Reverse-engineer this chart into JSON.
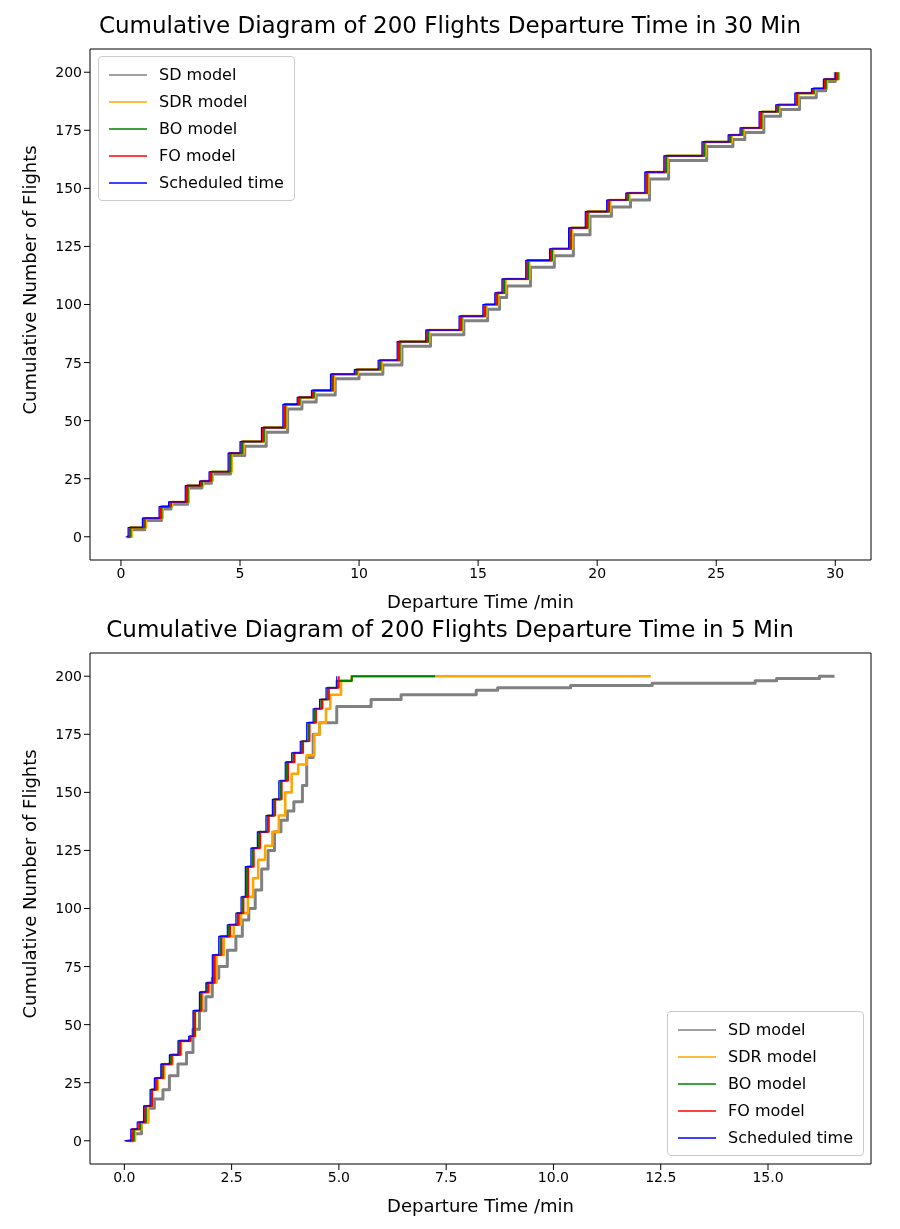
{
  "chart_data": [
    {
      "type": "step",
      "title": "Cumulative Diagram of 200 Flights Departure Time in 30 Min",
      "xlabel": "Departure Time /min",
      "ylabel": "Cumulative Number of Flights",
      "xlim": [
        -1.3,
        31.5
      ],
      "ylim": [
        -10,
        210
      ],
      "xticks": [
        0,
        5,
        10,
        15,
        20,
        25,
        30
      ],
      "yticks": [
        0,
        25,
        50,
        75,
        100,
        125,
        150,
        175,
        200
      ],
      "grid": false,
      "legend": "top left",
      "marker": "none",
      "line_style": "solid",
      "series": [
        {
          "name": "SD model",
          "color": "#808080",
          "x": [
            0.25,
            0.4,
            1.0,
            1.7,
            2.1,
            2.8,
            3.4,
            3.8,
            4.6,
            5.2,
            6.1,
            7.0,
            7.6,
            8.2,
            9.0,
            10.0,
            11.0,
            11.8,
            13.0,
            14.4,
            15.4,
            15.9,
            16.2,
            17.2,
            18.2,
            19.0,
            19.7,
            20.6,
            21.4,
            22.2,
            23.0,
            24.6,
            25.7,
            26.2,
            27.0,
            27.7,
            28.5,
            29.2,
            29.6,
            30.0
          ],
          "values": [
            0,
            3,
            7,
            12,
            14,
            21,
            23,
            27,
            35,
            39,
            45,
            55,
            58,
            61,
            68,
            70,
            74,
            82,
            87,
            93,
            98,
            103,
            108,
            116,
            121,
            130,
            138,
            142,
            145,
            154,
            162,
            168,
            171,
            174,
            181,
            184,
            189,
            192,
            196,
            200
          ]
        },
        {
          "name": "SDR model",
          "color": "#ffa500",
          "x": [
            0.35,
            0.45,
            1.05,
            1.75,
            2.15,
            2.85,
            3.45,
            3.85,
            4.65,
            5.15,
            6.05,
            6.95,
            7.55,
            8.15,
            8.95,
            9.95,
            10.95,
            11.75,
            12.95,
            14.35,
            15.35,
            15.85,
            16.15,
            17.15,
            18.15,
            18.95,
            19.65,
            20.55,
            21.35,
            22.15,
            22.95,
            24.55,
            25.65,
            26.15,
            26.95,
            27.65,
            28.45,
            29.15,
            29.65,
            30.15
          ],
          "values": [
            0,
            4,
            8,
            13,
            15,
            22,
            24,
            28,
            36,
            41,
            47,
            57,
            60,
            63,
            70,
            72,
            76,
            84,
            89,
            95,
            100,
            105,
            111,
            119,
            124,
            133,
            140,
            145,
            148,
            157,
            164,
            170,
            173,
            176,
            183,
            186,
            191,
            193,
            197,
            200
          ]
        },
        {
          "name": "BO model",
          "color": "#008000",
          "x": [
            0.3,
            0.4,
            1.0,
            1.7,
            2.1,
            2.8,
            3.4,
            3.8,
            4.6,
            5.1,
            6.0,
            6.9,
            7.5,
            8.1,
            8.9,
            9.9,
            10.9,
            11.7,
            12.9,
            14.3,
            15.3,
            15.8,
            16.1,
            17.1,
            18.1,
            18.9,
            19.6,
            20.5,
            21.3,
            22.1,
            22.9,
            24.5,
            25.6,
            26.1,
            26.9,
            27.6,
            28.4,
            29.1,
            29.6,
            30.1
          ],
          "values": [
            0,
            4,
            8,
            13,
            15,
            22,
            24,
            28,
            36,
            41,
            47,
            57,
            60,
            63,
            70,
            72,
            76,
            84,
            89,
            95,
            100,
            105,
            111,
            119,
            124,
            133,
            140,
            145,
            148,
            157,
            164,
            170,
            173,
            176,
            183,
            186,
            191,
            193,
            197,
            200
          ]
        },
        {
          "name": "FO model",
          "color": "#ff0000",
          "x": [
            0.25,
            0.35,
            0.95,
            1.65,
            2.05,
            2.75,
            3.35,
            3.75,
            4.55,
            5.05,
            5.95,
            6.85,
            7.45,
            8.05,
            8.85,
            9.85,
            10.85,
            11.65,
            12.85,
            14.25,
            15.25,
            15.75,
            16.05,
            17.05,
            18.05,
            18.85,
            19.55,
            20.45,
            21.25,
            22.05,
            22.85,
            24.45,
            25.55,
            26.05,
            26.85,
            27.55,
            28.35,
            29.05,
            29.55,
            30.05
          ],
          "values": [
            0,
            4,
            8,
            13,
            15,
            22,
            24,
            28,
            36,
            41,
            47,
            57,
            60,
            63,
            70,
            72,
            76,
            84,
            89,
            95,
            100,
            105,
            111,
            119,
            124,
            133,
            140,
            145,
            148,
            157,
            164,
            170,
            173,
            176,
            183,
            186,
            191,
            193,
            197,
            200
          ]
        },
        {
          "name": "Scheduled time",
          "color": "#0000ff",
          "x": [
            0.2,
            0.3,
            0.9,
            1.6,
            2.0,
            2.7,
            3.3,
            3.7,
            4.5,
            5.0,
            5.9,
            6.8,
            7.4,
            8.0,
            8.8,
            9.8,
            10.8,
            11.6,
            12.8,
            14.2,
            15.2,
            15.7,
            16.0,
            17.0,
            18.0,
            18.8,
            19.5,
            20.4,
            21.2,
            22.0,
            22.8,
            24.4,
            25.5,
            26.0,
            26.8,
            27.5,
            28.3,
            29.0,
            29.5,
            30.0
          ],
          "values": [
            0,
            4,
            8,
            13,
            15,
            22,
            24,
            28,
            36,
            41,
            47,
            57,
            60,
            63,
            70,
            72,
            76,
            84,
            89,
            95,
            100,
            105,
            111,
            119,
            124,
            133,
            140,
            145,
            148,
            157,
            164,
            170,
            173,
            176,
            183,
            186,
            191,
            193,
            197,
            200
          ]
        }
      ]
    },
    {
      "type": "step",
      "title": "Cumulative Diagram of 200 Flights Departure Time in 5 Min",
      "xlabel": "Departure Time /min",
      "ylabel": "Cumulative Number of Flights",
      "xlim": [
        -0.8,
        17.4
      ],
      "ylim": [
        -10,
        210
      ],
      "xticks": [
        {
          "value": 0,
          "label": "0.0"
        },
        {
          "value": 2.5,
          "label": "2.5"
        },
        {
          "value": 5,
          "label": "5.0"
        },
        {
          "value": 7.5,
          "label": "7.5"
        },
        {
          "value": 10,
          "label": "10.0"
        },
        {
          "value": 12.5,
          "label": "12.5"
        },
        {
          "value": 15,
          "label": "15.0"
        }
      ],
      "yticks": [
        0,
        25,
        50,
        75,
        100,
        125,
        150,
        175,
        200
      ],
      "grid": false,
      "legend": "bottom right",
      "marker": "none",
      "line_style": "solid",
      "series": [
        {
          "name": "SD model",
          "color": "#808080",
          "x": [
            0.1,
            0.2,
            0.4,
            0.55,
            0.7,
            0.9,
            1.05,
            1.25,
            1.45,
            1.6,
            1.75,
            1.9,
            2.05,
            2.2,
            2.4,
            2.6,
            2.75,
            2.9,
            3.05,
            3.2,
            3.35,
            3.5,
            3.65,
            3.8,
            3.95,
            4.15,
            4.25,
            4.4,
            4.55,
            4.95,
            5.75,
            6.45,
            8.2,
            8.7,
            10.4,
            12.3,
            14.7,
            15.2,
            16.2,
            16.55
          ],
          "values": [
            0,
            3,
            8,
            14,
            18,
            22,
            28,
            33,
            38,
            48,
            56,
            62,
            70,
            75,
            82,
            88,
            95,
            100,
            108,
            117,
            125,
            133,
            138,
            142,
            146,
            153,
            165,
            175,
            180,
            187,
            190,
            192,
            194,
            195,
            196,
            197,
            198,
            199,
            200,
            200
          ]
        },
        {
          "name": "SDR model",
          "color": "#ffa500",
          "x": [
            0.08,
            0.25,
            0.4,
            0.55,
            0.65,
            0.78,
            0.93,
            1.12,
            1.32,
            1.55,
            1.65,
            1.82,
            1.98,
            2.15,
            2.32,
            2.55,
            2.72,
            2.88,
            3.0,
            3.12,
            3.28,
            3.45,
            3.6,
            3.75,
            3.9,
            4.05,
            4.25,
            4.43,
            4.55,
            4.7,
            4.8,
            5.05,
            5.3,
            12.27
          ],
          "values": [
            0,
            5,
            8,
            15,
            22,
            27,
            33,
            37,
            43,
            45,
            56,
            64,
            68,
            80,
            88,
            93,
            98,
            105,
            113,
            121,
            127,
            133,
            140,
            150,
            158,
            162,
            166,
            175,
            180,
            186,
            192,
            198,
            200,
            200
          ]
        },
        {
          "name": "BO model",
          "color": "#008000",
          "x": [
            0.05,
            0.22,
            0.37,
            0.5,
            0.63,
            0.73,
            0.88,
            1.08,
            1.28,
            1.53,
            1.63,
            1.78,
            1.93,
            2.08,
            2.24,
            2.44,
            2.64,
            2.76,
            2.86,
            2.99,
            3.14,
            3.34,
            3.49,
            3.64,
            3.79,
            3.94,
            4.14,
            4.29,
            4.44,
            4.59,
            4.74,
            4.95,
            5.3,
            7.24
          ],
          "values": [
            0,
            5,
            8,
            15,
            22,
            27,
            33,
            37,
            43,
            45,
            56,
            64,
            68,
            80,
            88,
            93,
            98,
            105,
            118,
            126,
            133,
            140,
            147,
            155,
            163,
            167,
            172,
            180,
            186,
            190,
            195,
            198,
            200,
            200
          ]
        },
        {
          "name": "FO model",
          "color": "#ff0000",
          "x": [
            0.02,
            0.18,
            0.34,
            0.48,
            0.65,
            0.76,
            0.91,
            1.11,
            1.31,
            1.55,
            1.65,
            1.8,
            1.96,
            2.11,
            2.27,
            2.47,
            2.67,
            2.78,
            2.89,
            3.02,
            3.17,
            3.37,
            3.52,
            3.67,
            3.82,
            3.97,
            4.17,
            4.32,
            4.47,
            4.62,
            4.77,
            5.0
          ],
          "values": [
            0,
            5,
            8,
            15,
            22,
            27,
            33,
            37,
            43,
            45,
            56,
            64,
            68,
            80,
            88,
            93,
            98,
            105,
            118,
            126,
            133,
            140,
            147,
            155,
            163,
            167,
            172,
            180,
            186,
            190,
            195,
            200
          ]
        },
        {
          "name": "Scheduled time",
          "color": "#0000ff",
          "x": [
            0,
            0.15,
            0.3,
            0.45,
            0.6,
            0.7,
            0.85,
            1.05,
            1.25,
            1.5,
            1.6,
            1.75,
            1.9,
            2.05,
            2.2,
            2.4,
            2.6,
            2.72,
            2.82,
            2.95,
            3.1,
            3.3,
            3.45,
            3.6,
            3.75,
            3.9,
            4.1,
            4.25,
            4.4,
            4.55,
            4.7,
            4.95
          ],
          "values": [
            0,
            5,
            8,
            15,
            22,
            27,
            33,
            37,
            43,
            45,
            56,
            64,
            68,
            80,
            88,
            93,
            98,
            105,
            118,
            126,
            133,
            140,
            147,
            155,
            163,
            167,
            172,
            180,
            186,
            190,
            195,
            200
          ]
        }
      ]
    }
  ]
}
